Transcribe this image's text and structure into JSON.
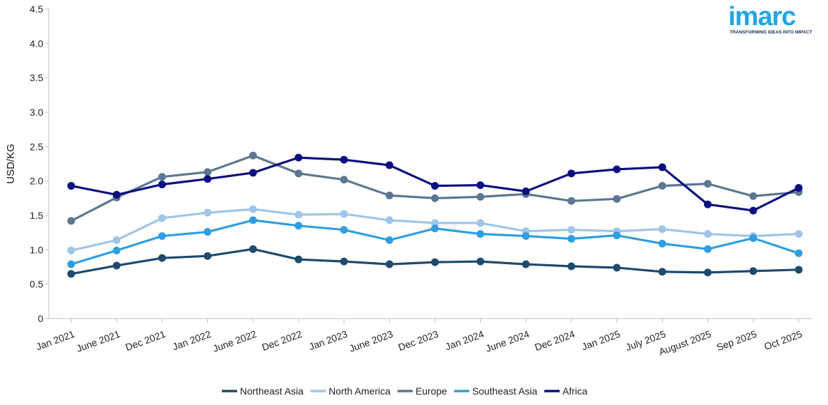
{
  "logo": {
    "word": "imarc",
    "tagline": "TRANSFORMING IDEAS INTO IMPACT",
    "color": "#1ea7e4"
  },
  "chart_data": {
    "type": "line",
    "ylabel": "USD/KG",
    "xlabel": "",
    "ylim": [
      0,
      4.5
    ],
    "yticks": [
      "0",
      "0.5",
      "1.0",
      "1.5",
      "2.0",
      "2.5",
      "3.0",
      "3.5",
      "4.0",
      "4.5"
    ],
    "grid": false,
    "legend_position": "bottom",
    "categories": [
      "Jan 2021",
      "June 2021",
      "Dec 2021",
      "Jan 2022",
      "June 2022",
      "Dec 2022",
      "Jan 2023",
      "June 2023",
      "Dec 2023",
      "Jan 2024",
      "June 2024",
      "Dec 2024",
      "Jan 2025",
      "July 2025",
      "August 2025",
      "Sep 2025",
      "Oct 2025"
    ],
    "series": [
      {
        "name": "Northeast Asia",
        "color": "#1e4a6e",
        "values": [
          0.65,
          0.77,
          0.88,
          0.91,
          1.01,
          0.86,
          0.83,
          0.79,
          0.82,
          0.83,
          0.79,
          0.76,
          0.74,
          0.68,
          0.67,
          0.69,
          0.71
        ]
      },
      {
        "name": "North America",
        "color": "#9fc5e8",
        "values": [
          0.99,
          1.14,
          1.46,
          1.54,
          1.59,
          1.51,
          1.52,
          1.43,
          1.39,
          1.39,
          1.27,
          1.29,
          1.27,
          1.3,
          1.23,
          1.2,
          1.23
        ]
      },
      {
        "name": "Europe",
        "color": "#5b7792",
        "values": [
          1.42,
          1.76,
          2.06,
          2.13,
          2.37,
          2.11,
          2.02,
          1.79,
          1.75,
          1.77,
          1.81,
          1.71,
          1.74,
          1.93,
          1.96,
          1.78,
          1.84
        ]
      },
      {
        "name": "Southeast Asia",
        "color": "#2f9ee0",
        "values": [
          0.79,
          0.99,
          1.2,
          1.26,
          1.43,
          1.35,
          1.29,
          1.14,
          1.31,
          1.23,
          1.2,
          1.16,
          1.21,
          1.09,
          1.01,
          1.17,
          0.95
        ]
      },
      {
        "name": "Africa",
        "color": "#0b0f80",
        "values": [
          1.93,
          1.8,
          1.95,
          2.03,
          2.12,
          2.34,
          2.31,
          2.23,
          1.93,
          1.94,
          1.85,
          2.11,
          2.17,
          2.2,
          1.66,
          1.57,
          1.9
        ]
      }
    ]
  }
}
